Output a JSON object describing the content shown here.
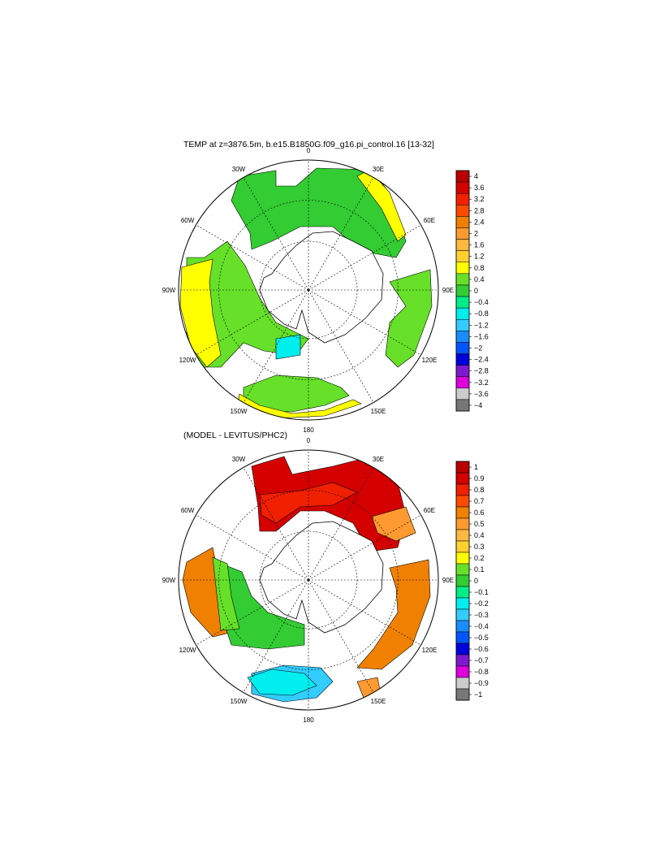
{
  "panels": [
    {
      "title": "TEMP at z=3876.5m, b.e15.B1850G.f09_g16.pi_control.16 [13-32]",
      "lon_labels": [
        "0",
        "30E",
        "60E",
        "90E",
        "120E",
        "150E",
        "180",
        "150W",
        "120W",
        "90W",
        "60W",
        "30W"
      ],
      "colorbar": {
        "labels": [
          "4",
          "3.6",
          "3.2",
          "2.8",
          "2.4",
          "2",
          "1.6",
          "1.2",
          "0.8",
          "0.4",
          "0",
          "−0.4",
          "−0.8",
          "−1.2",
          "−1.6",
          "−2",
          "−2.4",
          "−2.8",
          "−3.2",
          "−3.6",
          "−4"
        ],
        "colors": [
          "#b80000",
          "#d40000",
          "#f02000",
          "#ff4a00",
          "#f08000",
          "#ff9a30",
          "#ffb840",
          "#ffd030",
          "#ffff00",
          "#66e029",
          "#33cc33",
          "#00ee88",
          "#00eeee",
          "#33ccff",
          "#1a8cff",
          "#0055ff",
          "#0000dd",
          "#7d1acc",
          "#dd00dd",
          "#cccccc",
          "#777777"
        ]
      }
    },
    {
      "title": "(MODEL - LEVITUS/PHC2)",
      "lon_labels": [
        "0",
        "30E",
        "60E",
        "90E",
        "120E",
        "150E",
        "180",
        "150W",
        "120W",
        "90W",
        "60W",
        "30W"
      ],
      "colorbar": {
        "labels": [
          "1",
          "0.9",
          "0.8",
          "0.7",
          "0.6",
          "0.5",
          "0.4",
          "0.3",
          "0.2",
          "0.1",
          "0",
          "−0.1",
          "−0.2",
          "−0.3",
          "−0.4",
          "−0.5",
          "−0.6",
          "−0.7",
          "−0.8",
          "−0.9",
          "−1"
        ],
        "colors": [
          "#b80000",
          "#d40000",
          "#f02000",
          "#ff4a00",
          "#f08000",
          "#ff9a30",
          "#ffb840",
          "#ffd030",
          "#ffff00",
          "#66e029",
          "#33cc33",
          "#00ee88",
          "#00eeee",
          "#33ccff",
          "#1a8cff",
          "#0055ff",
          "#0000dd",
          "#7d1acc",
          "#dd00dd",
          "#cccccc",
          "#777777"
        ]
      }
    }
  ]
}
